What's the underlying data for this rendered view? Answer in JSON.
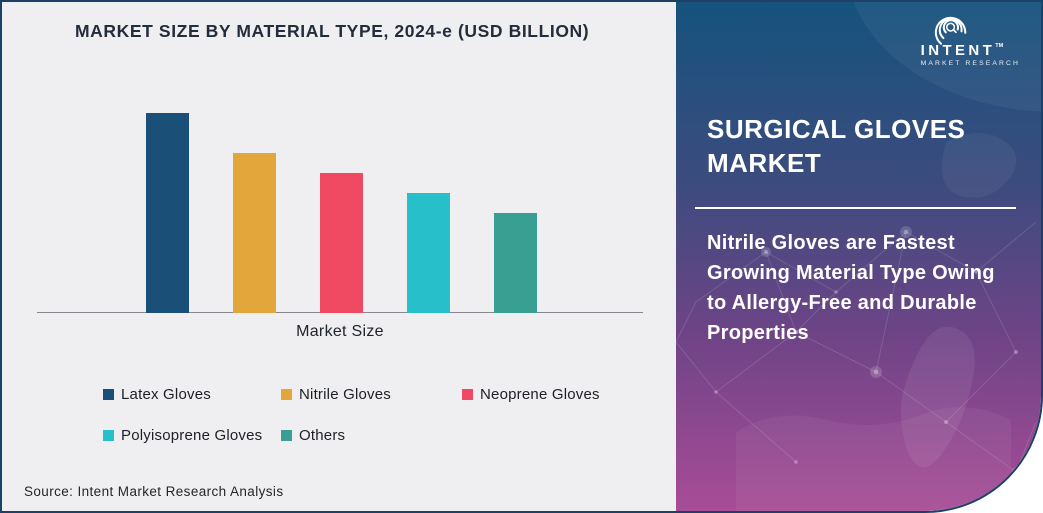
{
  "chart": {
    "title": "MARKET SIZE BY MATERIAL TYPE, 2024-e (USD BILLION)",
    "xlabel": "Market Size",
    "source": "Source: Intent Market Research Analysis"
  },
  "chart_data": {
    "type": "bar",
    "title": "MARKET SIZE BY MATERIAL TYPE, 2024-e (USD BILLION)",
    "categories": [
      "Latex Gloves",
      "Nitrile Gloves",
      "Neoprene Gloves",
      "Polyisoprene Gloves",
      "Others"
    ],
    "values": [
      1.0,
      0.8,
      0.7,
      0.6,
      0.5
    ],
    "value_note": "no numeric axis shown; values are relative bar heights estimated from pixels",
    "colors": [
      "#1A4F78",
      "#E2A63A",
      "#EF4A62",
      "#27BFC9",
      "#3A9F93"
    ],
    "xlabel": "Market Size",
    "ylabel": "",
    "grid": false,
    "legend_position": "bottom"
  },
  "panel": {
    "title_lines": [
      "SURGICAL GLOVES",
      "MARKET"
    ],
    "description_lines": [
      "Nitrile Gloves are Fastest",
      "Growing Material Type Owing",
      "to Allergy-Free and Durable",
      "Properties"
    ]
  },
  "brand": {
    "name": "INTENT",
    "tm": "TM",
    "tagline": "MARKET RESEARCH"
  }
}
